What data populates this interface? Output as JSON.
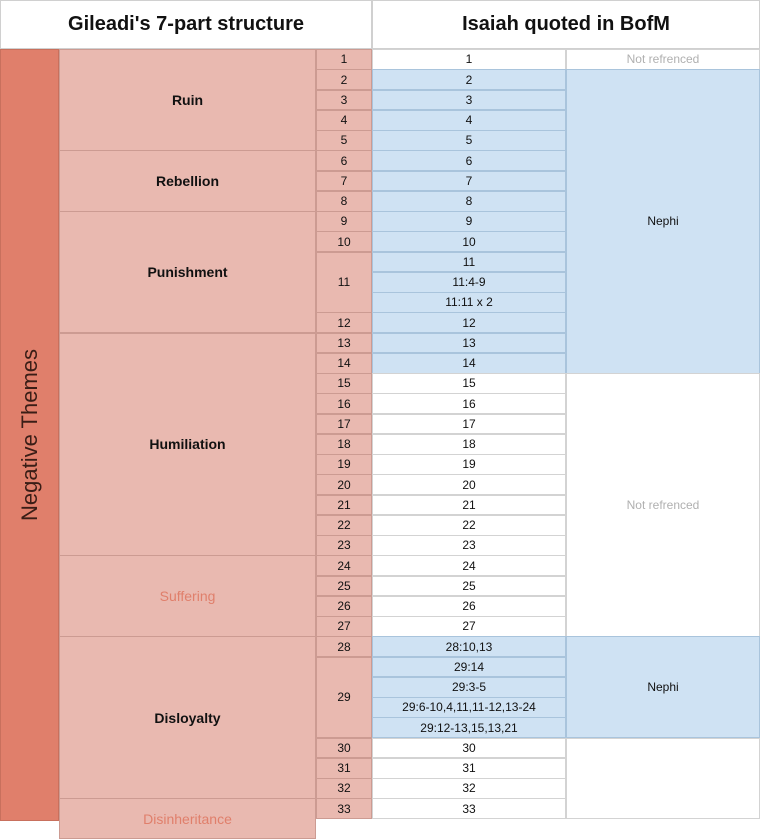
{
  "headers": {
    "left": "Gileadi's 7-part structure",
    "right": "Isaiah quoted in BofM"
  },
  "theme": "Negative Themes",
  "sections": [
    {
      "name": "Ruin",
      "start": 0,
      "end": 4,
      "faint": false
    },
    {
      "name": "Rebellion",
      "start": 5,
      "end": 7,
      "faint": false
    },
    {
      "name": "Punishment",
      "start": 8,
      "end": 13,
      "faint": false
    },
    {
      "name": "Humiliation",
      "start": 14,
      "end": 24,
      "faint": false
    },
    {
      "name": "Suffering",
      "start": 25,
      "end": 28,
      "faint": true
    },
    {
      "name": "Disloyalty",
      "start": 29,
      "end": 36,
      "faint": false
    },
    {
      "name": "Disinheritance",
      "start": 37,
      "end": 38,
      "faint": true
    }
  ],
  "chapters": [
    {
      "label": "1",
      "start": 0,
      "end": 0
    },
    {
      "label": "2",
      "start": 1,
      "end": 1
    },
    {
      "label": "3",
      "start": 2,
      "end": 2
    },
    {
      "label": "4",
      "start": 3,
      "end": 3
    },
    {
      "label": "5",
      "start": 4,
      "end": 4
    },
    {
      "label": "6",
      "start": 5,
      "end": 5
    },
    {
      "label": "7",
      "start": 6,
      "end": 6
    },
    {
      "label": "8",
      "start": 7,
      "end": 7
    },
    {
      "label": "9",
      "start": 8,
      "end": 8
    },
    {
      "label": "10",
      "start": 9,
      "end": 9
    },
    {
      "label": "11",
      "start": 10,
      "end": 12
    },
    {
      "label": "12",
      "start": 13,
      "end": 13
    },
    {
      "label": "13",
      "start": 14,
      "end": 14
    },
    {
      "label": "14",
      "start": 15,
      "end": 15
    },
    {
      "label": "15",
      "start": 16,
      "end": 16
    },
    {
      "label": "16",
      "start": 17,
      "end": 17
    },
    {
      "label": "17",
      "start": 18,
      "end": 18
    },
    {
      "label": "18",
      "start": 19,
      "end": 19
    },
    {
      "label": "19",
      "start": 20,
      "end": 20
    },
    {
      "label": "20",
      "start": 21,
      "end": 21
    },
    {
      "label": "21",
      "start": 22,
      "end": 22
    },
    {
      "label": "22",
      "start": 23,
      "end": 23
    },
    {
      "label": "23",
      "start": 24,
      "end": 24
    },
    {
      "label": "24",
      "start": 25,
      "end": 25
    },
    {
      "label": "25",
      "start": 26,
      "end": 26
    },
    {
      "label": "26",
      "start": 27,
      "end": 27
    },
    {
      "label": "27",
      "start": 28,
      "end": 28
    },
    {
      "label": "28",
      "start": 29,
      "end": 29
    },
    {
      "label": "29",
      "start": 30,
      "end": 33
    },
    {
      "label": "30",
      "start": 34,
      "end": 34
    },
    {
      "label": "31",
      "start": 35,
      "end": 35
    },
    {
      "label": "32",
      "start": 36,
      "end": 36
    },
    {
      "label": "33",
      "start": 37,
      "end": 37
    }
  ],
  "quotes": [
    {
      "text": "1",
      "hl": false
    },
    {
      "text": "2",
      "hl": true
    },
    {
      "text": "3",
      "hl": true
    },
    {
      "text": "4",
      "hl": true
    },
    {
      "text": "5",
      "hl": true
    },
    {
      "text": "6",
      "hl": true
    },
    {
      "text": "7",
      "hl": true
    },
    {
      "text": "8",
      "hl": true
    },
    {
      "text": "9",
      "hl": true
    },
    {
      "text": "10",
      "hl": true
    },
    {
      "text": "11",
      "hl": true
    },
    {
      "text": "11:4-9",
      "hl": true
    },
    {
      "text": "11:11 x 2",
      "hl": true
    },
    {
      "text": "12",
      "hl": true
    },
    {
      "text": "13",
      "hl": true
    },
    {
      "text": "14",
      "hl": true
    },
    {
      "text": "15",
      "hl": false
    },
    {
      "text": "16",
      "hl": false
    },
    {
      "text": "17",
      "hl": false
    },
    {
      "text": "18",
      "hl": false
    },
    {
      "text": "19",
      "hl": false
    },
    {
      "text": "20",
      "hl": false
    },
    {
      "text": "21",
      "hl": false
    },
    {
      "text": "22",
      "hl": false
    },
    {
      "text": "23",
      "hl": false
    },
    {
      "text": "24",
      "hl": false
    },
    {
      "text": "25",
      "hl": false
    },
    {
      "text": "26",
      "hl": false
    },
    {
      "text": "27",
      "hl": false
    },
    {
      "text": "28:10,13",
      "hl": true
    },
    {
      "text": "29:14",
      "hl": true
    },
    {
      "text": "29:3-5",
      "hl": true
    },
    {
      "text": "29:6-10,4,11,11-12,13-24",
      "hl": true
    },
    {
      "text": "29:12-13,15,13,21",
      "hl": true
    },
    {
      "text": "30",
      "hl": false
    },
    {
      "text": "31",
      "hl": false
    },
    {
      "text": "32",
      "hl": false
    },
    {
      "text": "33",
      "hl": false
    }
  ],
  "refs": [
    {
      "text": "Not refrenced",
      "start": 0,
      "end": 0,
      "hl": false
    },
    {
      "text": "Nephi",
      "start": 1,
      "end": 15,
      "hl": true
    },
    {
      "text": "Not refrenced",
      "start": 16,
      "end": 28,
      "hl": false
    },
    {
      "text": "Nephi",
      "start": 29,
      "end": 33,
      "hl": true
    },
    {
      "text": "",
      "start": 34,
      "end": 37,
      "hl": false
    }
  ]
}
